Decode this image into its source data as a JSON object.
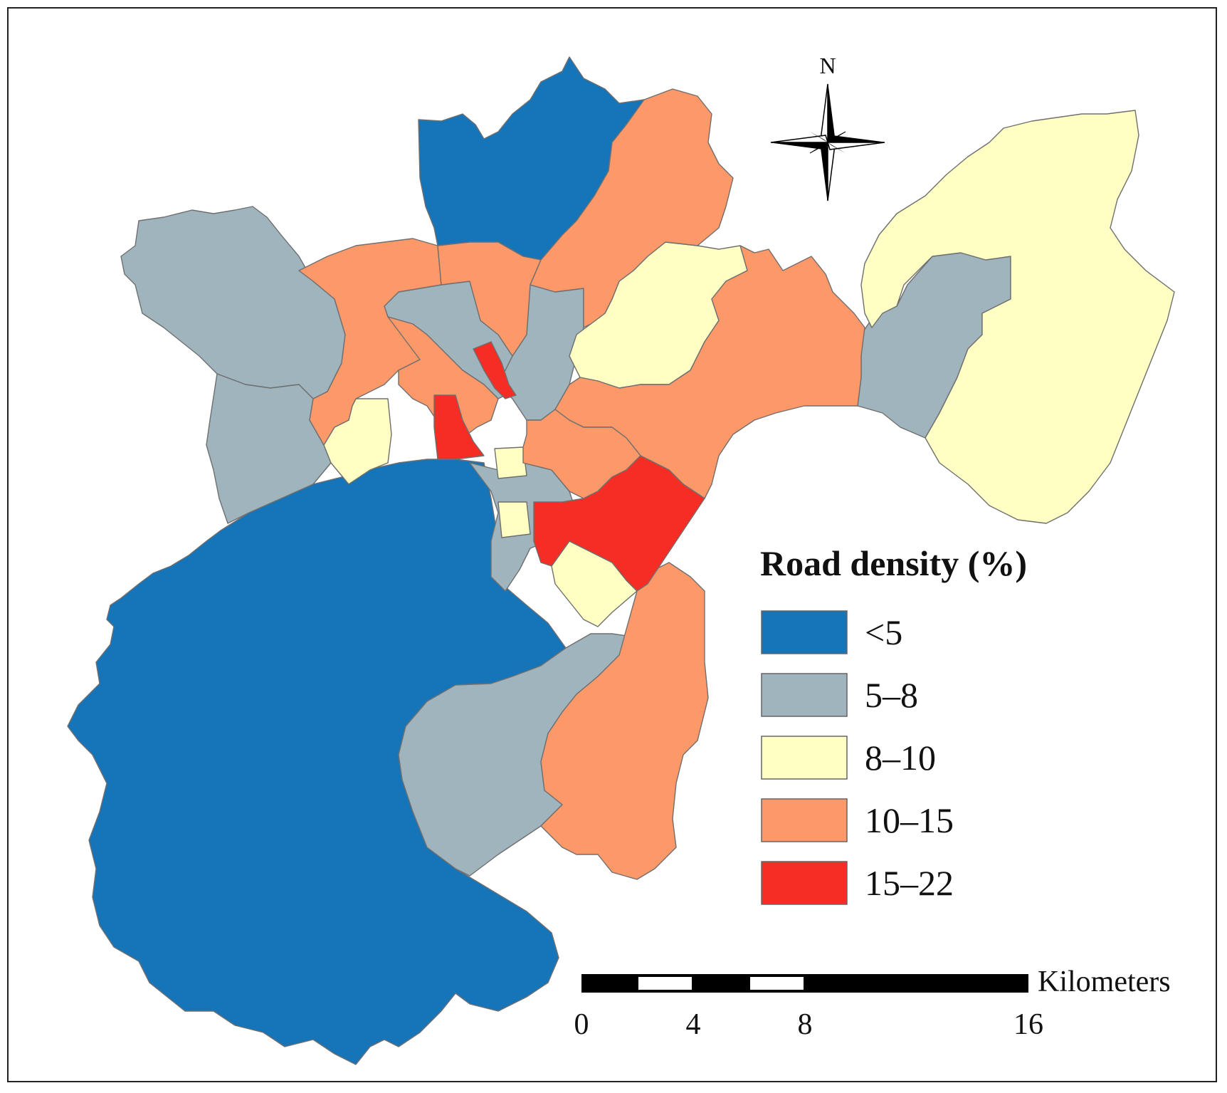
{
  "legend": {
    "title": "Road density (%)",
    "classes": [
      {
        "label": "<5",
        "color": "#1674b9"
      },
      {
        "label": "5–8",
        "color": "#9fb4bd"
      },
      {
        "label": "8–10",
        "color": "#ffffc4"
      },
      {
        "label": "10–15",
        "color": "#fd9869"
      },
      {
        "label": "15–22",
        "color": "#f52d24"
      }
    ]
  },
  "north_arrow": {
    "label": "N"
  },
  "scale_bar": {
    "unit": "Kilometers",
    "ticks": [
      "0",
      "4",
      "8",
      "16"
    ]
  },
  "colors": {
    "boundary": "#6f6f6f",
    "frame": "#222222"
  }
}
